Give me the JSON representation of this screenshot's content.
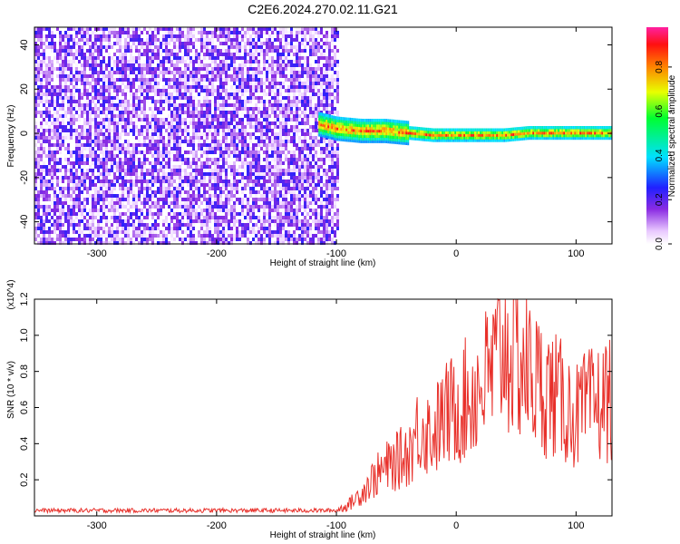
{
  "title": "C2E6.2024.270.02.11.G21",
  "chart_data": [
    {
      "type": "heatmap",
      "xlabel": "Height of straight line (km)",
      "ylabel": "Frequency (Hz)",
      "xlim": [
        -352,
        130
      ],
      "ylim": [
        -50,
        48
      ],
      "xticks": [
        -300,
        -200,
        -100,
        0,
        100
      ],
      "yticks": [
        -40,
        -20,
        0,
        20,
        40
      ],
      "colorbar": {
        "label": "Normalized spectral amplitude",
        "range": [
          0,
          0.98
        ],
        "ticks": [
          0.0,
          0.2,
          0.4,
          0.6,
          0.8
        ],
        "tick_labels": [
          "0.0",
          "0.2",
          "0.4",
          "0.6",
          "0.8"
        ],
        "placement": "right"
      },
      "regions": [
        {
          "kind": "noise",
          "x_range": [
            -352,
            -100
          ],
          "amplitude_range": [
            0.0,
            0.25
          ]
        },
        {
          "kind": "dominant-line",
          "points": [
            [
              -115,
              5
            ],
            [
              -100,
              3
            ],
            [
              -80,
              2
            ],
            [
              -60,
              2
            ],
            [
              -40,
              1
            ],
            [
              -20,
              0
            ],
            [
              0,
              0
            ],
            [
              20,
              0
            ],
            [
              40,
              0
            ],
            [
              60,
              1
            ],
            [
              80,
              1
            ],
            [
              100,
              1
            ],
            [
              130,
              1
            ]
          ],
          "amplitude_range": [
            0.3,
            0.95
          ]
        }
      ],
      "grid": false
    },
    {
      "type": "line",
      "xlabel": "Height of straight line (km)",
      "ylabel": "SNR (10 * v/v)",
      "y_multiplier": "(x10^4)",
      "xlim": [
        -352,
        130
      ],
      "ylim": [
        0,
        1.2
      ],
      "xticks": [
        -300,
        -200,
        -100,
        0,
        100
      ],
      "yticks": [
        0.2,
        0.4,
        0.6,
        0.8,
        1.0,
        1.2
      ],
      "ytick_labels": [
        "0.2",
        "0.4",
        "0.6",
        "0.8",
        "1.0",
        "1.2"
      ],
      "color": "#e8302a",
      "series": [
        {
          "x": [
            -352,
            -300,
            -250,
            -200,
            -150,
            -100,
            -90,
            -80,
            -70,
            -60,
            -50,
            -40,
            -30,
            -20,
            -10,
            0,
            10,
            20,
            30,
            40,
            50,
            60,
            70,
            80,
            90,
            100,
            110,
            120,
            130
          ],
          "values": [
            0.03,
            0.03,
            0.03,
            0.03,
            0.03,
            0.03,
            0.06,
            0.12,
            0.2,
            0.26,
            0.3,
            0.35,
            0.5,
            0.45,
            0.55,
            0.6,
            0.65,
            0.72,
            0.8,
            0.95,
            0.88,
            0.8,
            0.72,
            0.68,
            0.62,
            0.55,
            0.6,
            0.62,
            0.66
          ]
        }
      ],
      "grid": false
    }
  ]
}
